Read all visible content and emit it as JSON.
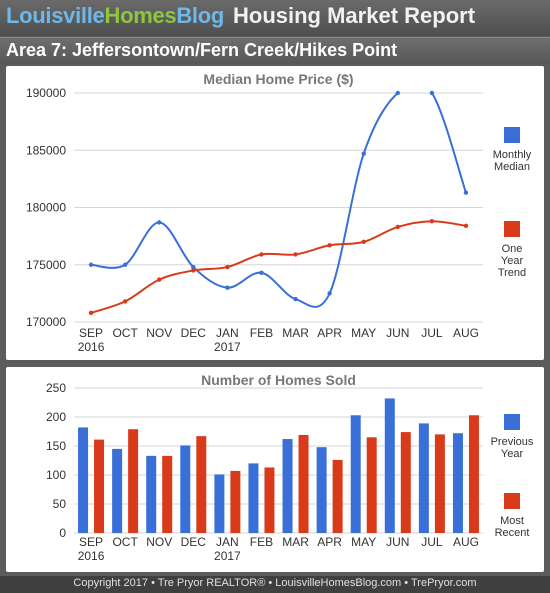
{
  "header": {
    "brand_part1": "Louisville",
    "brand_part2": "Homes",
    "brand_part3": "Blog",
    "title": "Housing Market Report"
  },
  "area": {
    "label": "Area 7: Jeffersontown/Fern Creek/Hikes Point"
  },
  "footer": {
    "text": "Copyright 2017 • Tre Pryor REALTOR® • LouisvilleHomesBlog.com • TrePryor.com"
  },
  "colors": {
    "blue": "#3a6fd8",
    "red": "#d93b1a",
    "grid": "#d6d6d6",
    "axis_text": "#333333",
    "title_text": "#777777"
  },
  "chart_data": [
    {
      "type": "line",
      "title": "Median Home Price ($)",
      "categories": [
        {
          "month": "SEP",
          "year": "2016"
        },
        {
          "month": "OCT",
          "year": ""
        },
        {
          "month": "NOV",
          "year": ""
        },
        {
          "month": "DEC",
          "year": ""
        },
        {
          "month": "JAN",
          "year": "2017"
        },
        {
          "month": "FEB",
          "year": ""
        },
        {
          "month": "MAR",
          "year": ""
        },
        {
          "month": "APR",
          "year": ""
        },
        {
          "month": "MAY",
          "year": ""
        },
        {
          "month": "JUN",
          "year": ""
        },
        {
          "month": "JUL",
          "year": ""
        },
        {
          "month": "AUG",
          "year": ""
        }
      ],
      "yticks": [
        170000,
        175000,
        180000,
        185000,
        190000
      ],
      "ylim": [
        170000,
        190000
      ],
      "grid": true,
      "legend_position": "right",
      "series": [
        {
          "name": "Monthly Median",
          "legend_lines": [
            "Monthly",
            "Median"
          ],
          "color": "#3a6fd8",
          "values": [
            175000,
            175000,
            178700,
            174800,
            173000,
            174300,
            172000,
            172500,
            184700,
            190000,
            190000,
            181300
          ]
        },
        {
          "name": "One Year Trend",
          "legend_lines": [
            "One",
            "Year",
            "Trend"
          ],
          "color": "#d93b1a",
          "values": [
            170800,
            171800,
            173700,
            174500,
            174800,
            175900,
            175900,
            176700,
            177000,
            178300,
            178800,
            178400
          ]
        }
      ]
    },
    {
      "type": "bar",
      "title": "Number of Homes Sold",
      "categories": [
        {
          "month": "SEP",
          "year": "2016"
        },
        {
          "month": "OCT",
          "year": ""
        },
        {
          "month": "NOV",
          "year": ""
        },
        {
          "month": "DEC",
          "year": ""
        },
        {
          "month": "JAN",
          "year": "2017"
        },
        {
          "month": "FEB",
          "year": ""
        },
        {
          "month": "MAR",
          "year": ""
        },
        {
          "month": "APR",
          "year": ""
        },
        {
          "month": "MAY",
          "year": ""
        },
        {
          "month": "JUN",
          "year": ""
        },
        {
          "month": "JUL",
          "year": ""
        },
        {
          "month": "AUG",
          "year": ""
        }
      ],
      "yticks": [
        0,
        50,
        100,
        150,
        200,
        250
      ],
      "ylim": [
        0,
        250
      ],
      "grid": true,
      "legend_position": "right",
      "series": [
        {
          "name": "Previous Year",
          "legend_lines": [
            "Previous",
            "Year"
          ],
          "color": "#3a6fd8",
          "values": [
            182,
            145,
            133,
            151,
            101,
            120,
            162,
            148,
            203,
            232,
            189,
            172
          ]
        },
        {
          "name": "Most Recent",
          "legend_lines": [
            "Most",
            "Recent"
          ],
          "color": "#d93b1a",
          "values": [
            161,
            179,
            133,
            167,
            107,
            113,
            169,
            126,
            165,
            174,
            170,
            203
          ]
        }
      ]
    }
  ]
}
